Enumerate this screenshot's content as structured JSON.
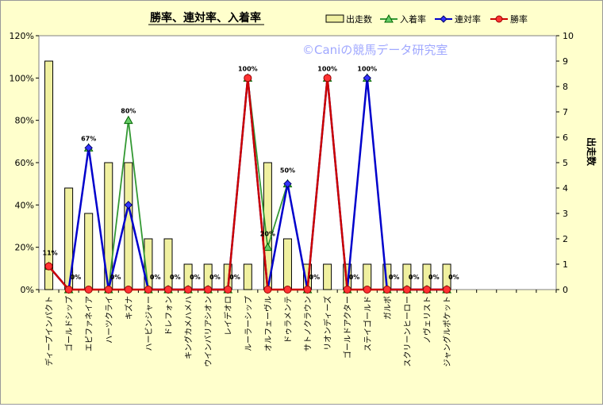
{
  "chart_data": {
    "type": "bar+line",
    "title": "勝率、連対率、入着率",
    "watermark": "©Caniの競馬データ研究室",
    "y2label": "出走数",
    "categories": [
      "ディープインパクト",
      "ゴールドシップ",
      "エピファネイア",
      "ハーツクライ",
      "キズナ",
      "ハービンジャー",
      "ドレフォン",
      "キングカメハメハ",
      "ウインバリアシオン",
      "レイデオロ",
      "ルーラーシップ",
      "オルフェーヴル",
      "ドゥラメンテ",
      "サトノクラウン",
      "リオンディーズ",
      "ゴールドアクター",
      "ステイゴールド",
      "ガルボ",
      "スクリーンヒーロー",
      "ノヴェリスト",
      "ジャングルポケット"
    ],
    "ylim": [
      0,
      1.2
    ],
    "y_ticks": [
      "0%",
      "20%",
      "40%",
      "60%",
      "80%",
      "100%",
      "120%"
    ],
    "y2lim": [
      0,
      10
    ],
    "y2_ticks": [
      "0",
      "1",
      "2",
      "3",
      "4",
      "5",
      "6",
      "7",
      "8",
      "9",
      "10"
    ],
    "legend_position": "top-right",
    "series": [
      {
        "name": "出走数",
        "kind": "bar",
        "axis": "right",
        "color": "#f0f0a0",
        "values": [
          9,
          4,
          3,
          5,
          5,
          2,
          2,
          1,
          1,
          1,
          1,
          5,
          2,
          1,
          1,
          1,
          1,
          1,
          1,
          1,
          1
        ]
      },
      {
        "name": "入着率",
        "kind": "line",
        "axis": "left",
        "color": "#339933",
        "marker": "triangle",
        "values": [
          0.11,
          0,
          0.67,
          0,
          0.8,
          0,
          0,
          0,
          0,
          0,
          1.0,
          0.2,
          0.5,
          0,
          1.0,
          0,
          1.0,
          0,
          0,
          0,
          0
        ]
      },
      {
        "name": "連対率",
        "kind": "line",
        "axis": "left",
        "color": "#0000cc",
        "marker": "diamond",
        "values": [
          0.11,
          0,
          0.67,
          0,
          0.4,
          0,
          0,
          0,
          0,
          0,
          1.0,
          0,
          0.5,
          0,
          1.0,
          0,
          1.0,
          0,
          0,
          0,
          0
        ]
      },
      {
        "name": "勝率",
        "kind": "line",
        "axis": "left",
        "color": "#cc0000",
        "marker": "circle",
        "values": [
          0.11,
          0,
          0,
          0,
          0,
          0,
          0,
          0,
          0,
          0,
          1.0,
          0,
          0,
          0,
          1.0,
          0,
          0,
          0,
          0,
          0,
          0
        ]
      }
    ],
    "data_labels": [
      "11%",
      "0%",
      "67%",
      "0%",
      "80%",
      "0%",
      "0%",
      "0%",
      "0%",
      "0%",
      "100%",
      "20%",
      "50%",
      "0%",
      "100%",
      "0%",
      "100%",
      "0%",
      "0%",
      "0%",
      "0%"
    ]
  }
}
